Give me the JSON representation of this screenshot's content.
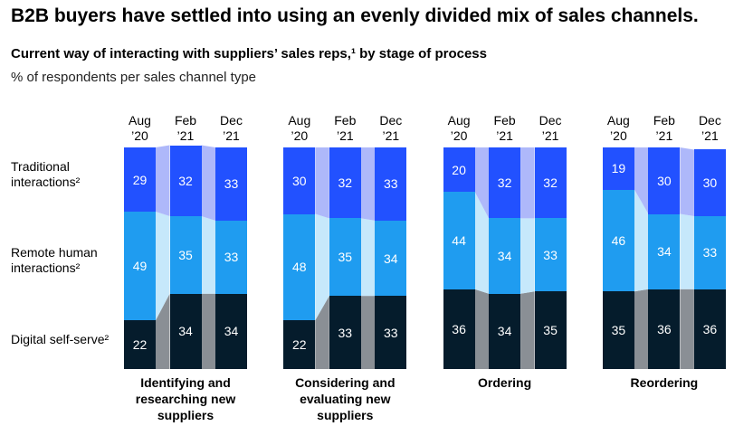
{
  "chart_data": {
    "type": "stacked_bar",
    "title": "B2B buyers have settled into using an evenly divided mix of sales channels.",
    "subtitle": "Current way of interacting with suppliers’ sales reps,¹ by stage of process",
    "unit_label": "% of respondents per sales channel type",
    "series": [
      {
        "name": "Digital self-serve²",
        "color": "#051c2c",
        "connector_color": "#8a8f95"
      },
      {
        "name": "Remote human interactions²",
        "color": "#1f9cf0",
        "connector_color": "#c6e8fb"
      },
      {
        "name": "Traditional interactions²",
        "color": "#2251ff",
        "connector_color": "#aeb8fa"
      }
    ],
    "panels": [
      {
        "label": "Identifying and researching new suppliers",
        "categories": [
          "Aug ’20",
          "Feb ’21",
          "Dec ’21"
        ],
        "values": [
          [
            22,
            34,
            34
          ],
          [
            49,
            35,
            33
          ],
          [
            29,
            32,
            33
          ]
        ]
      },
      {
        "label": "Considering and evaluating new suppliers",
        "categories": [
          "Aug ’20",
          "Feb ’21",
          "Dec ’21"
        ],
        "values": [
          [
            22,
            33,
            33
          ],
          [
            48,
            35,
            34
          ],
          [
            30,
            32,
            33
          ]
        ]
      },
      {
        "label": "Ordering",
        "categories": [
          "Aug ’20",
          "Feb ’21",
          "Dec ’21"
        ],
        "values": [
          [
            36,
            34,
            35
          ],
          [
            44,
            34,
            33
          ],
          [
            20,
            32,
            32
          ]
        ]
      },
      {
        "label": "Reordering",
        "categories": [
          "Aug ’20",
          "Feb ’21",
          "Dec ’21"
        ],
        "values": [
          [
            35,
            36,
            36
          ],
          [
            46,
            34,
            33
          ],
          [
            19,
            30,
            30
          ]
        ]
      }
    ]
  }
}
